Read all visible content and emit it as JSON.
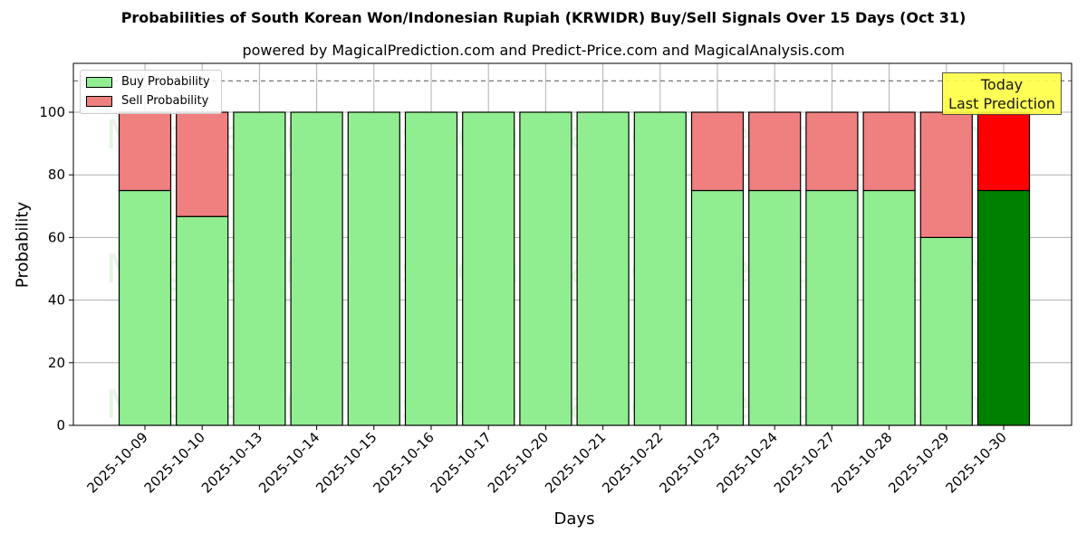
{
  "title": "Probabilities of South Korean Won/Indonesian Rupiah (KRWIDR) Buy/Sell Signals Over 15 Days (Oct 31)",
  "subtitle": "powered by MagicalPrediction.com and Predict-Price.com and MagicalAnalysis.com",
  "annotation": {
    "line1": "Today",
    "line2": "Last Prediction"
  },
  "legend": {
    "buy": "Buy Probability",
    "sell": "Sell Probability"
  },
  "colors": {
    "buy": "#90ee90",
    "sell": "#f08080",
    "buy_today": "#008000",
    "sell_today": "#ff0000",
    "annotation_bg": "#ffff44"
  },
  "chart_data": {
    "type": "bar",
    "stacked": true,
    "title": "Probabilities of South Korean Won/Indonesian Rupiah (KRWIDR) Buy/Sell Signals Over 15 Days (Oct 31)",
    "subtitle": "powered by MagicalPrediction.com and Predict-Price.com and MagicalAnalysis.com",
    "xlabel": "Days",
    "ylabel": "Probability",
    "ylim": [
      0,
      115
    ],
    "yticks": [
      0,
      20,
      40,
      60,
      80,
      100
    ],
    "grid": true,
    "legend_position": "upper left",
    "reference_line": {
      "y": 110,
      "style": "dashed"
    },
    "categories": [
      "2025-10-09",
      "2025-10-10",
      "2025-10-13",
      "2025-10-14",
      "2025-10-15",
      "2025-10-16",
      "2025-10-17",
      "2025-10-20",
      "2025-10-21",
      "2025-10-22",
      "2025-10-23",
      "2025-10-24",
      "2025-10-27",
      "2025-10-28",
      "2025-10-29",
      "2025-10-30"
    ],
    "series": [
      {
        "name": "Buy Probability",
        "values": [
          75,
          66.7,
          100,
          100,
          100,
          100,
          100,
          100,
          100,
          100,
          75,
          75,
          75,
          75,
          60,
          75
        ]
      },
      {
        "name": "Sell Probability",
        "values": [
          25,
          33.3,
          0,
          0,
          0,
          0,
          0,
          0,
          0,
          0,
          25,
          25,
          25,
          25,
          40,
          25
        ]
      }
    ],
    "annotations": [
      {
        "text": "Today\nLast Prediction",
        "x": "2025-10-30"
      }
    ],
    "watermarks": [
      "MagicalAnalysis.com",
      "MagicalPrediction.com"
    ]
  }
}
